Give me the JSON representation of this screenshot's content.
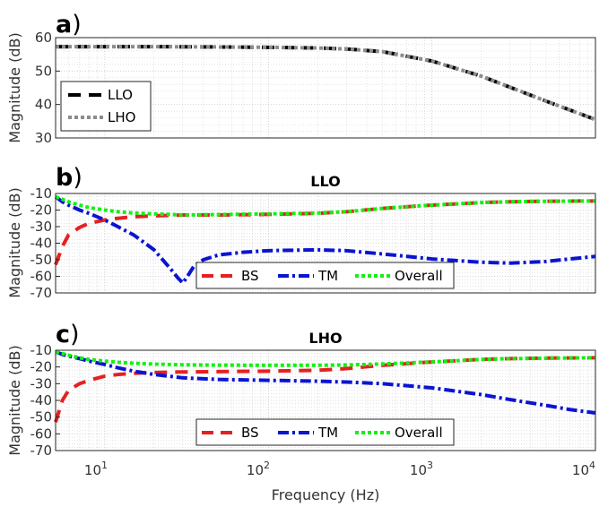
{
  "colors": {
    "LLO": "#000000",
    "LHO": "#8c8c8c",
    "BS": "#e62020",
    "TM": "#0a14d2",
    "Overall": "#14f014",
    "grid": "#c8c8c8"
  },
  "x_axis": {
    "label": "Frequency (Hz)",
    "tick_labels": [
      {
        "base": "10",
        "exp": "1"
      },
      {
        "base": "10",
        "exp": "2"
      },
      {
        "base": "10",
        "exp": "3"
      },
      {
        "base": "10",
        "exp": "4"
      }
    ]
  },
  "chart_data": [
    {
      "panel": "a",
      "label_letter": "a",
      "label_paren": ")",
      "type": "line",
      "title": "",
      "xlabel": "",
      "ylabel": "Magnitude (dB)",
      "xscale": "log",
      "xlim": [
        5,
        10000
      ],
      "ylim": [
        30,
        60
      ],
      "yticks": [
        30,
        40,
        50,
        60
      ],
      "grid": true,
      "legend_position": "bottom-left",
      "x": [
        5,
        10,
        20,
        50,
        100,
        200,
        300,
        500,
        1000,
        2000,
        5000,
        10000
      ],
      "series": [
        {
          "name": "LLO",
          "style": "dashed",
          "values": [
            57.3,
            57.3,
            57.3,
            57.2,
            57.1,
            56.9,
            56.6,
            55.8,
            53.0,
            48.5,
            41.0,
            35.5
          ]
        },
        {
          "name": "LHO",
          "style": "dotted",
          "values": [
            57.3,
            57.3,
            57.3,
            57.2,
            57.1,
            56.9,
            56.6,
            55.8,
            53.0,
            48.5,
            41.0,
            35.5
          ]
        }
      ]
    },
    {
      "panel": "b",
      "label_letter": "b",
      "label_paren": ")",
      "type": "line",
      "title": "LLO",
      "xlabel": "",
      "ylabel": "Magnitude (dB)",
      "xscale": "log",
      "xlim": [
        5,
        10000
      ],
      "ylim": [
        -70,
        -10
      ],
      "yticks": [
        -10,
        -20,
        -30,
        -40,
        -50,
        -60,
        -70
      ],
      "grid": true,
      "legend_position": "bottom-right",
      "x": [
        5,
        5.5,
        6,
        7,
        8,
        10,
        12,
        15,
        20,
        25,
        28,
        30,
        32,
        35,
        40,
        50,
        70,
        100,
        200,
        300,
        500,
        1000,
        2000,
        3000,
        4000,
        5000,
        7000,
        10000
      ],
      "series": [
        {
          "name": "BS",
          "style": "dashed",
          "values": [
            -53,
            -42,
            -35,
            -30.5,
            -28,
            -26,
            -25,
            -24,
            -23.5,
            -23.2,
            -23.1,
            -23,
            -23,
            -23,
            -23,
            -23,
            -22.8,
            -22.6,
            -22,
            -21,
            -19,
            -17,
            -15.5,
            -15,
            -14.8,
            -14.7,
            -14.6,
            -14.5
          ]
        },
        {
          "name": "TM",
          "style": "dashdot",
          "values": [
            -12,
            -15,
            -17,
            -20,
            -22,
            -26,
            -30,
            -35,
            -44,
            -55,
            -61,
            -64,
            -60,
            -54,
            -50,
            -47,
            -45.5,
            -44.5,
            -44,
            -44.5,
            -46.5,
            -49.5,
            -51.5,
            -52,
            -51.5,
            -51,
            -49.5,
            -48
          ]
        },
        {
          "name": "Overall",
          "style": "dotted",
          "values": [
            -12,
            -13.5,
            -15,
            -17,
            -18.5,
            -20,
            -21,
            -21.8,
            -22.3,
            -22.6,
            -22.8,
            -22.9,
            -22.9,
            -22.9,
            -22.8,
            -22.7,
            -22.5,
            -22.3,
            -21.8,
            -21,
            -19,
            -17,
            -15.5,
            -15,
            -14.8,
            -14.7,
            -14.6,
            -14.5
          ]
        }
      ]
    },
    {
      "panel": "c",
      "label_letter": "c",
      "label_paren": ")",
      "type": "line",
      "title": "LHO",
      "xlabel": "Frequency (Hz)",
      "ylabel": "Magnitude (dB)",
      "xscale": "log",
      "xlim": [
        5,
        10000
      ],
      "ylim": [
        -70,
        -10
      ],
      "yticks": [
        -10,
        -20,
        -30,
        -40,
        -50,
        -60,
        -70
      ],
      "grid": true,
      "legend_position": "bottom-right",
      "x": [
        5,
        5.5,
        6,
        7,
        8,
        10,
        12,
        15,
        20,
        30,
        50,
        100,
        200,
        300,
        500,
        1000,
        2000,
        3000,
        5000,
        7000,
        10000
      ],
      "series": [
        {
          "name": "BS",
          "style": "dashed",
          "values": [
            -53,
            -40,
            -34,
            -30,
            -28,
            -25.5,
            -24.5,
            -23.8,
            -23.3,
            -23,
            -22.8,
            -22.5,
            -22,
            -21,
            -19,
            -17,
            -15.5,
            -15,
            -14.7,
            -14.6,
            -14.5
          ]
        },
        {
          "name": "TM",
          "style": "dashdot",
          "values": [
            -11,
            -12.5,
            -13.5,
            -15,
            -16.5,
            -18.5,
            -20.5,
            -22.5,
            -24.5,
            -26.5,
            -27.5,
            -28,
            -28.5,
            -29,
            -30,
            -32.5,
            -36.5,
            -39.5,
            -43,
            -45.5,
            -47.5
          ]
        },
        {
          "name": "Overall",
          "style": "dotted",
          "values": [
            -11,
            -12,
            -13,
            -14.5,
            -15.5,
            -16.5,
            -17.2,
            -17.8,
            -18.3,
            -18.7,
            -18.9,
            -19,
            -19,
            -18.8,
            -18.2,
            -17,
            -15.5,
            -15,
            -14.8,
            -14.6,
            -14.5
          ]
        }
      ]
    }
  ]
}
